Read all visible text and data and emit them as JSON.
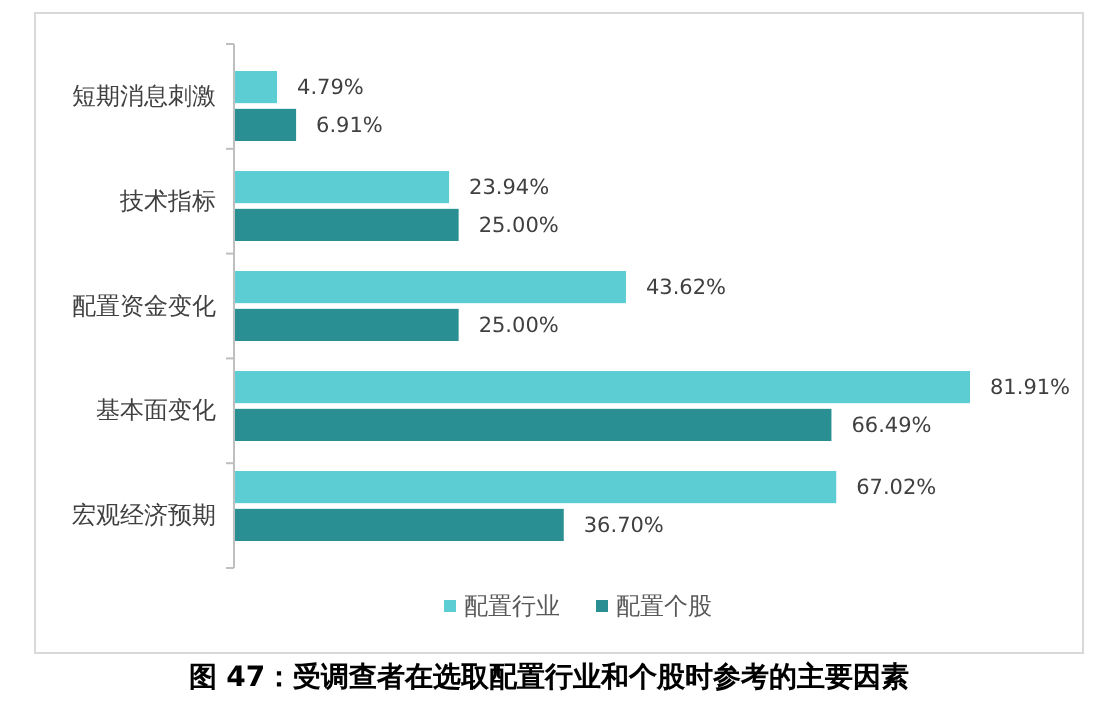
{
  "chart_data": {
    "type": "bar",
    "orientation": "horizontal",
    "title": "图 47：受调查者在选取配置行业和个股时参考的主要因素",
    "categories": [
      "短期消息刺激",
      "技术指标",
      "配置资金变化",
      "基本面变化",
      "宏观经济预期"
    ],
    "series": [
      {
        "name": "配置行业",
        "color": "#5bcdd3",
        "values": [
          4.79,
          23.94,
          43.62,
          81.91,
          67.02
        ],
        "value_labels": [
          "4.79%",
          "23.94%",
          "43.62%",
          "81.91%",
          "67.02%"
        ]
      },
      {
        "name": "配置个股",
        "color": "#2a8f93",
        "values": [
          6.91,
          25.0,
          25.0,
          66.49,
          36.7
        ],
        "value_labels": [
          "6.91%",
          "25.00%",
          "25.00%",
          "66.49%",
          "36.70%"
        ]
      }
    ],
    "legend": "bottom",
    "grid": false
  }
}
